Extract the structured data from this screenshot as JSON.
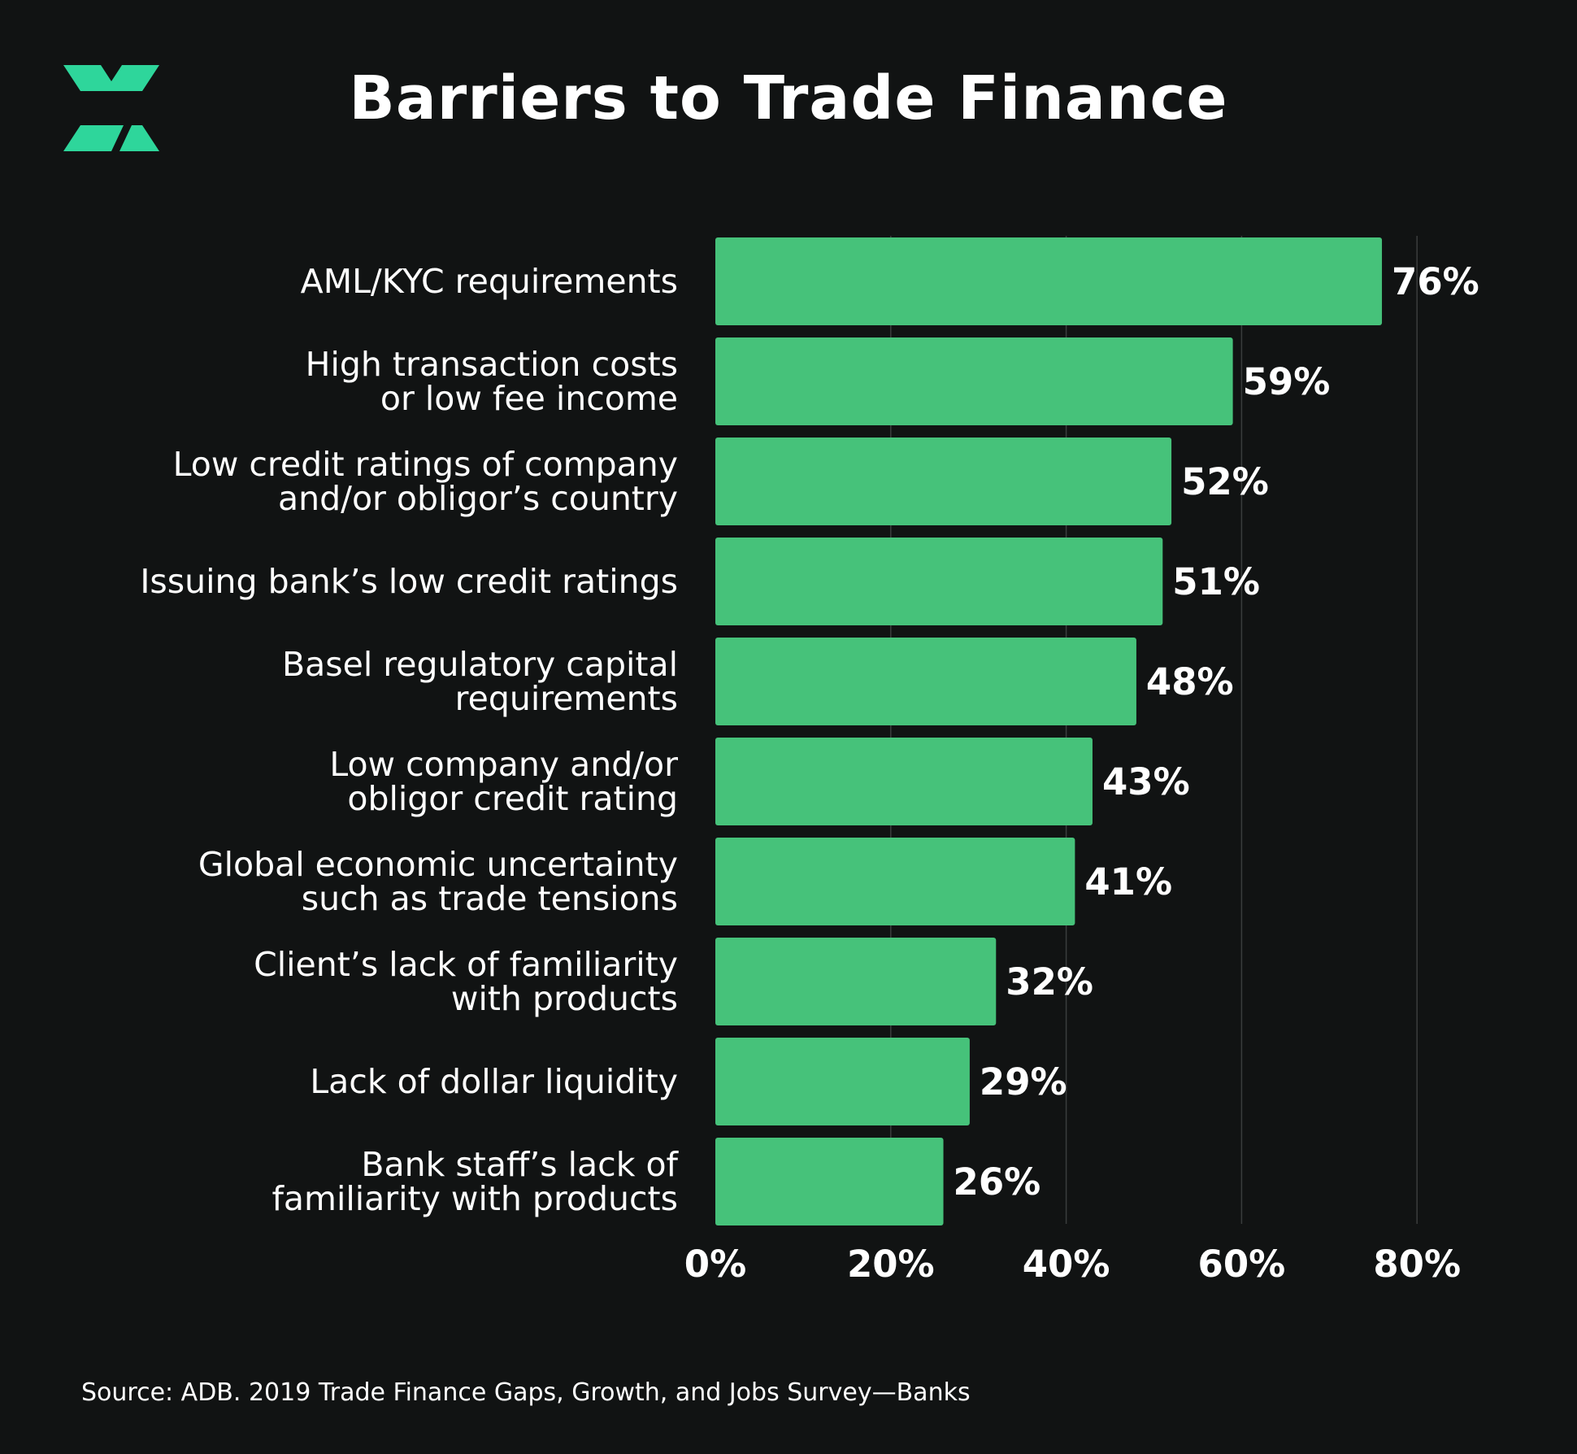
{
  "brand": {
    "accent": "#2ed69b",
    "logo_icon": "x-logo-icon"
  },
  "colors": {
    "background": "#111313",
    "bar": "#46c27a",
    "grid": "#3a3d3d",
    "text": "#ffffff"
  },
  "source": "Source: ADB. 2019 Trade Finance Gaps, Growth, and Jobs Survey—Banks",
  "chart_data": {
    "type": "bar",
    "orientation": "horizontal",
    "title": "Barriers to Trade Finance",
    "categories": [
      [
        "AML/KYC requirements"
      ],
      [
        "High transaction costs",
        "or low fee income"
      ],
      [
        "Low credit ratings of company",
        "and/or obligor’s country"
      ],
      [
        "Issuing bank’s low credit ratings"
      ],
      [
        "Basel regulatory capital",
        "requirements"
      ],
      [
        "Low company and/or",
        "obligor credit rating"
      ],
      [
        "Global economic uncertainty",
        "such as trade tensions"
      ],
      [
        "Client’s lack of familiarity",
        "with products"
      ],
      [
        "Lack of dollar liquidity"
      ],
      [
        "Bank staff’s lack of",
        "familiarity with products"
      ]
    ],
    "values": [
      76,
      59,
      52,
      51,
      48,
      43,
      41,
      32,
      29,
      26
    ],
    "value_labels": [
      "76%",
      "59%",
      "52%",
      "51%",
      "48%",
      "43%",
      "41%",
      "32%",
      "29%",
      "26%"
    ],
    "xlim": [
      0,
      80
    ],
    "xticks": [
      0,
      20,
      40,
      60,
      80
    ],
    "xtick_labels": [
      "0%",
      "20%",
      "40%",
      "60%",
      "80%"
    ],
    "grid": true,
    "legend": "none"
  }
}
